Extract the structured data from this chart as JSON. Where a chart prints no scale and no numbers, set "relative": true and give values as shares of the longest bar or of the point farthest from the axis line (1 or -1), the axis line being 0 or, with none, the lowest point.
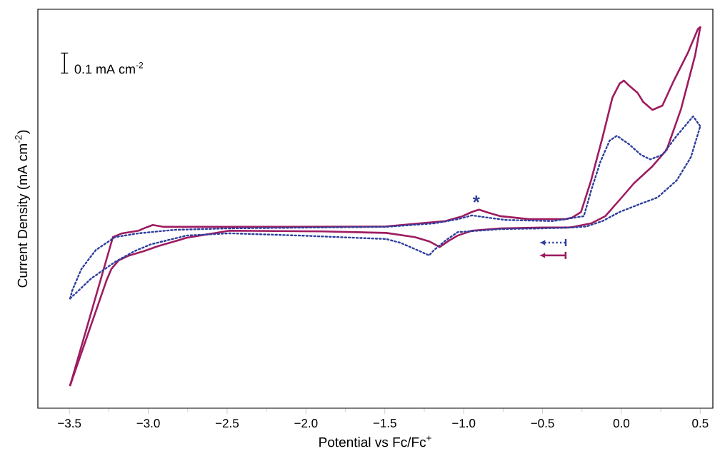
{
  "chart_data": {
    "type": "line",
    "relative": true,
    "xlabel": "Potential vs Fc/Fc$^{+}$",
    "ylabel": "Current Density (mA cm$^{-2}$)",
    "xlim": [
      -3.7,
      0.58
    ],
    "xticks": [
      {
        "value": -3.5,
        "label": "−3.5"
      },
      {
        "value": -3.0,
        "label": "−3.0"
      },
      {
        "value": -2.5,
        "label": "−2.5"
      },
      {
        "value": -2.0,
        "label": "−2.0"
      },
      {
        "value": -1.5,
        "label": "−1.5"
      },
      {
        "value": -1.0,
        "label": "−1.0"
      },
      {
        "value": -0.5,
        "label": "−0.5"
      },
      {
        "value": 0.0,
        "label": "0.0"
      },
      {
        "value": 0.5,
        "label": "0.5"
      }
    ],
    "grid": false,
    "marker": "none",
    "tick_labels": "x",
    "annotations": [
      "0.1 mA cm$^{-2}$",
      {
        "text": "*",
        "x": -0.92,
        "y": 0.52
      }
    ],
    "series": [
      {
        "color": "#9e1c60",
        "line_style": "solid",
        "x": [
          -3.495,
          -3.224,
          -3.165,
          -3.061,
          -3.016,
          -2.971,
          -2.907,
          -2.758,
          -2.124,
          -1.491,
          -1.115,
          -1.007,
          -0.948,
          -0.903,
          -0.844,
          -0.767,
          -0.586,
          -0.36,
          -0.314,
          -0.256,
          -0.192,
          -0.12,
          -0.057,
          -0.011,
          0.016,
          0.048,
          0.102,
          0.138,
          0.197,
          0.26,
          0.333,
          0.423,
          0.486,
          0.5
        ],
        "values": [
          0.06,
          0.449,
          0.459,
          0.466,
          0.474,
          0.481,
          0.476,
          0.476,
          0.476,
          0.477,
          0.491,
          0.504,
          0.515,
          0.521,
          0.513,
          0.504,
          0.496,
          0.496,
          0.5,
          0.515,
          0.598,
          0.71,
          0.815,
          0.852,
          0.86,
          0.847,
          0.828,
          0.804,
          0.783,
          0.794,
          0.86,
          0.934,
          0.996,
          1.0
        ]
      },
      {
        "color": "#9e1c60",
        "line_style": "solid",
        "x": [
          -3.495,
          -3.265,
          -3.233,
          -3.188,
          -3.12,
          -3.029,
          -2.939,
          -2.758,
          -2.486,
          -1.898,
          -1.491,
          -1.31,
          -1.219,
          -1.152,
          -1.093,
          -1.038,
          -0.948,
          -0.767,
          -0.495,
          -0.337,
          -0.301,
          -0.192,
          -0.102,
          0.002,
          0.079,
          0.197,
          0.287,
          0.378,
          0.468,
          0.5
        ],
        "values": [
          0.06,
          0.335,
          0.366,
          0.388,
          0.401,
          0.412,
          0.425,
          0.447,
          0.466,
          0.464,
          0.46,
          0.449,
          0.438,
          0.423,
          0.44,
          0.453,
          0.466,
          0.472,
          0.474,
          0.474,
          0.476,
          0.485,
          0.504,
          0.553,
          0.59,
          0.635,
          0.678,
          0.785,
          0.927,
          1.0
        ]
      },
      {
        "color": "#2e3f9e",
        "line_style": "dotted",
        "x": [
          -3.495,
          -3.482,
          -3.423,
          -3.333,
          -3.21,
          -3.061,
          -2.835,
          -2.486,
          -1.491,
          -1.188,
          -1.038,
          -0.948,
          -0.844,
          -0.735,
          -0.437,
          -0.238,
          -0.192,
          -0.133,
          -0.075,
          -0.029,
          0.048,
          0.124,
          0.183,
          0.26,
          0.351,
          0.455,
          0.5
        ],
        "values": [
          0.288,
          0.309,
          0.366,
          0.415,
          0.449,
          0.459,
          0.468,
          0.472,
          0.476,
          0.485,
          0.496,
          0.506,
          0.5,
          0.494,
          0.491,
          0.504,
          0.571,
          0.647,
          0.702,
          0.715,
          0.693,
          0.665,
          0.653,
          0.665,
          0.715,
          0.766,
          0.74
        ]
      },
      {
        "color": "#2e3f9e",
        "line_style": "dotted",
        "x": [
          -3.495,
          -3.36,
          -3.21,
          -3.088,
          -2.984,
          -2.758,
          -2.486,
          -2.034,
          -1.491,
          -1.4,
          -1.278,
          -1.219,
          -1.188,
          -1.115,
          -1.038,
          -0.767,
          -0.495,
          -0.337,
          -0.314,
          -0.222,
          -0.12,
          -0.011,
          0.106,
          0.229,
          0.351,
          0.441,
          0.5
        ],
        "values": [
          0.288,
          0.341,
          0.384,
          0.412,
          0.43,
          0.453,
          0.459,
          0.453,
          0.444,
          0.434,
          0.412,
          0.401,
          0.415,
          0.44,
          0.462,
          0.47,
          0.472,
          0.474,
          0.474,
          0.477,
          0.491,
          0.515,
          0.534,
          0.553,
          0.598,
          0.659,
          0.74
        ]
      }
    ]
  }
}
